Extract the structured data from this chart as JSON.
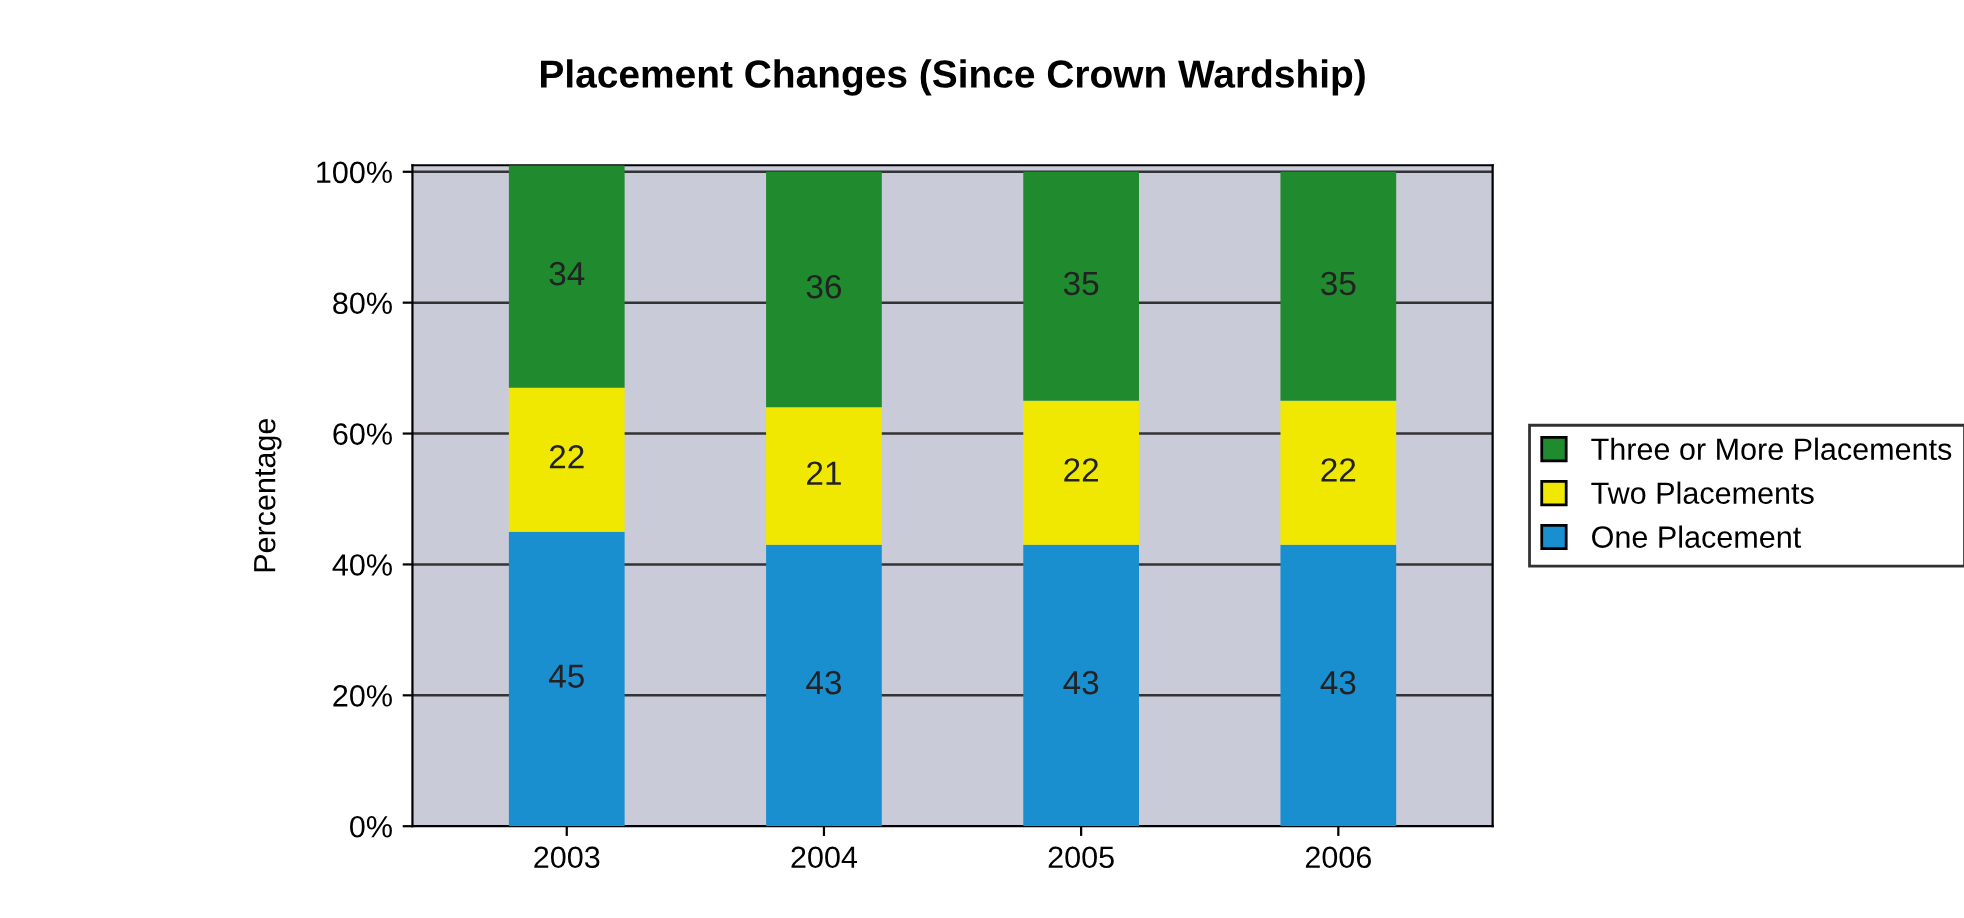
{
  "chart_data": {
    "type": "bar",
    "title": "Placement Changes (Since Crown Wardship)",
    "ylabel": "Percentage",
    "categories": [
      "2003",
      "2004",
      "2005",
      "2006"
    ],
    "stacked": true,
    "data_labels": true,
    "series": [
      {
        "name": "One Placement",
        "color": "#1a8fd0",
        "values": [
          45,
          43,
          43,
          43
        ]
      },
      {
        "name": "Two Placements",
        "color": "#f0e800",
        "values": [
          22,
          21,
          22,
          22
        ]
      },
      {
        "name": "Three or More Placements",
        "color": "#1f8a2e",
        "values": [
          34,
          36,
          35,
          35
        ]
      }
    ],
    "ylim": [
      0,
      101
    ],
    "yticks": [
      {
        "value": 0,
        "label": "0%"
      },
      {
        "value": 20,
        "label": "20%"
      },
      {
        "value": 40,
        "label": "40%"
      },
      {
        "value": 60,
        "label": "60%"
      },
      {
        "value": 80,
        "label": "80%"
      },
      {
        "value": 100,
        "label": "100%"
      }
    ],
    "grid": "y",
    "legend": "right"
  }
}
